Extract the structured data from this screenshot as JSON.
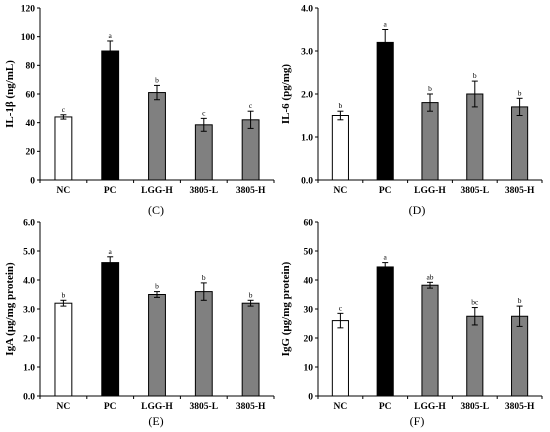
{
  "colors": {
    "NC": "#ffffff",
    "PC": "#000000",
    "default": "#808080",
    "stroke": "#000000"
  },
  "chart_data": [
    {
      "type": "bar",
      "panel_label": "(C)",
      "categories": [
        "NC",
        "PC",
        "LGG-H",
        "3805-L",
        "3805-H"
      ],
      "values": [
        44,
        90,
        61,
        38.5,
        42
      ],
      "errors": [
        1.5,
        7,
        5,
        4.5,
        6
      ],
      "letters": [
        "c",
        "a",
        "b",
        "c",
        "c"
      ],
      "ylabel": "IL-1β (ng/mL)",
      "ylim": [
        0,
        120
      ],
      "yticks": [
        "0",
        "20",
        "40",
        "60",
        "80",
        "100",
        "120"
      ]
    },
    {
      "type": "bar",
      "panel_label": "(D)",
      "categories": [
        "NC",
        "PC",
        "LGG-H",
        "3805-L",
        "3805-H"
      ],
      "values": [
        1.5,
        3.2,
        1.8,
        2.0,
        1.7
      ],
      "errors": [
        0.1,
        0.3,
        0.2,
        0.3,
        0.2
      ],
      "letters": [
        "b",
        "a",
        "b",
        "b",
        "b"
      ],
      "ylabel": "IL-6 (pg/mg)",
      "ylim": [
        0,
        4
      ],
      "yticks": [
        "0.0",
        "1.0",
        "2.0",
        "3.0",
        "4.0"
      ]
    },
    {
      "type": "bar",
      "panel_label": "(E)",
      "categories": [
        "NC",
        "PC",
        "LGG-H",
        "3805-L",
        "3805-H"
      ],
      "values": [
        3.2,
        4.6,
        3.5,
        3.6,
        3.2
      ],
      "errors": [
        0.1,
        0.2,
        0.1,
        0.3,
        0.1
      ],
      "letters": [
        "b",
        "a",
        "b",
        "b",
        "b"
      ],
      "ylabel": "IgA (μg/mg protein)",
      "ylim": [
        0,
        6
      ],
      "yticks": [
        "0.0",
        "1.0",
        "2.0",
        "3.0",
        "4.0",
        "5.0",
        "6.0"
      ]
    },
    {
      "type": "bar",
      "panel_label": "(F)",
      "categories": [
        "NC",
        "PC",
        "LGG-H",
        "3805-L",
        "3805-H"
      ],
      "values": [
        26,
        44.5,
        38.2,
        27.5,
        27.5
      ],
      "errors": [
        2.5,
        1.5,
        1,
        3,
        3.5
      ],
      "letters": [
        "c",
        "a",
        "ab",
        "bc",
        "b"
      ],
      "ylabel": "IgG (μg/mg protein)",
      "ylim": [
        0,
        60
      ],
      "yticks": [
        "0",
        "10",
        "20",
        "30",
        "40",
        "50",
        "60"
      ]
    }
  ]
}
